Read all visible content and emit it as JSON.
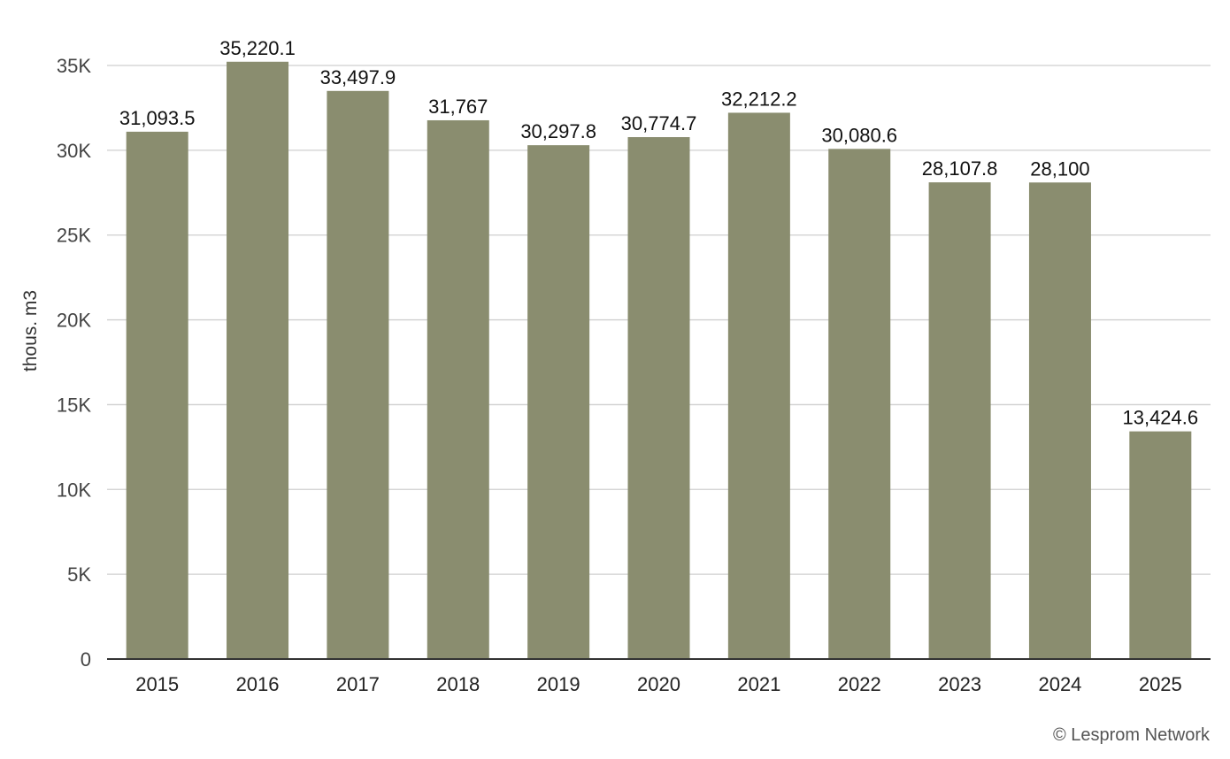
{
  "chart_data": {
    "type": "bar",
    "categories": [
      "2015",
      "2016",
      "2017",
      "2018",
      "2019",
      "2020",
      "2021",
      "2022",
      "2023",
      "2024",
      "2025"
    ],
    "values": [
      31093.5,
      35220.1,
      33497.9,
      31767,
      30297.8,
      30774.7,
      32212.2,
      30080.6,
      28107.8,
      28100,
      13424.6
    ],
    "data_labels": [
      "31,093.5",
      "35,220.1",
      "33,497.9",
      "31,767",
      "30,297.8",
      "30,774.7",
      "32,212.2",
      "30,080.6",
      "28,107.8",
      "28,100",
      "13,424.6"
    ],
    "ylabel": "thous. m3",
    "xlabel": "",
    "ylim": [
      0,
      35000
    ],
    "yticks": [
      0,
      5000,
      10000,
      15000,
      20000,
      25000,
      30000,
      35000
    ],
    "ytick_labels": [
      "0",
      "5K",
      "10K",
      "15K",
      "20K",
      "25K",
      "30K",
      "35K"
    ],
    "grid": true,
    "bar_color": "#8a8d6f"
  },
  "credit": "© Lesprom Network"
}
